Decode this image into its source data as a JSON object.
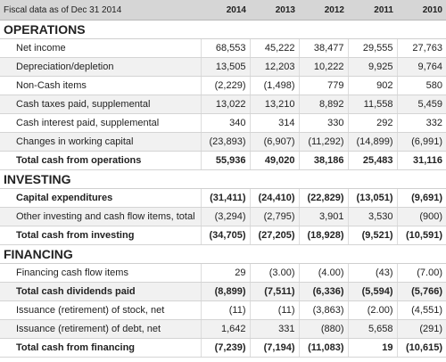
{
  "header": {
    "label": "Fiscal data as of Dec 31 2014",
    "years": [
      "2014",
      "2013",
      "2012",
      "2011",
      "2010"
    ]
  },
  "sections": [
    {
      "title": "OPERATIONS",
      "rows": [
        {
          "label": "Net income",
          "values": [
            "68,553",
            "45,222",
            "38,477",
            "29,555",
            "27,763"
          ],
          "total": false
        },
        {
          "label": "Depreciation/depletion",
          "values": [
            "13,505",
            "12,203",
            "10,222",
            "9,925",
            "9,764"
          ],
          "total": false
        },
        {
          "label": "Non-Cash items",
          "values": [
            "(2,229)",
            "(1,498)",
            "779",
            "902",
            "580"
          ],
          "total": false
        },
        {
          "label": "Cash taxes paid, supplemental",
          "values": [
            "13,022",
            "13,210",
            "8,892",
            "11,558",
            "5,459"
          ],
          "total": false
        },
        {
          "label": "Cash interest paid, supplemental",
          "values": [
            "340",
            "314",
            "330",
            "292",
            "332"
          ],
          "total": false
        },
        {
          "label": "Changes in working capital",
          "values": [
            "(23,893)",
            "(6,907)",
            "(11,292)",
            "(14,899)",
            "(6,991)"
          ],
          "total": false
        },
        {
          "label": "Total cash from operations",
          "values": [
            "55,936",
            "49,020",
            "38,186",
            "25,483",
            "31,116"
          ],
          "total": true
        }
      ]
    },
    {
      "title": "INVESTING",
      "rows": [
        {
          "label": "Capital expenditures",
          "values": [
            "(31,411)",
            "(24,410)",
            "(22,829)",
            "(13,051)",
            "(9,691)"
          ],
          "total": true
        },
        {
          "label": "Other investing and cash flow items, total",
          "values": [
            "(3,294)",
            "(2,795)",
            "3,901",
            "3,530",
            "(900)"
          ],
          "total": false
        },
        {
          "label": "Total cash from investing",
          "values": [
            "(34,705)",
            "(27,205)",
            "(18,928)",
            "(9,521)",
            "(10,591)"
          ],
          "total": true
        }
      ]
    },
    {
      "title": "FINANCING",
      "rows": [
        {
          "label": "Financing cash flow items",
          "values": [
            "29",
            "(3.00)",
            "(4.00)",
            "(43)",
            "(7.00)"
          ],
          "total": false
        },
        {
          "label": "Total cash dividends paid",
          "values": [
            "(8,899)",
            "(7,511)",
            "(6,336)",
            "(5,594)",
            "(5,766)"
          ],
          "total": true
        },
        {
          "label": "Issuance (retirement) of stock, net",
          "values": [
            "(11)",
            "(11)",
            "(3,863)",
            "(2.00)",
            "(4,551)"
          ],
          "total": false
        },
        {
          "label": "Issuance (retirement) of debt, net",
          "values": [
            "1,642",
            "331",
            "(880)",
            "5,658",
            "(291)"
          ],
          "total": false
        },
        {
          "label": "Total cash from financing",
          "values": [
            "(7,239)",
            "(7,194)",
            "(11,083)",
            "19",
            "(10,615)"
          ],
          "total": true
        }
      ]
    }
  ]
}
